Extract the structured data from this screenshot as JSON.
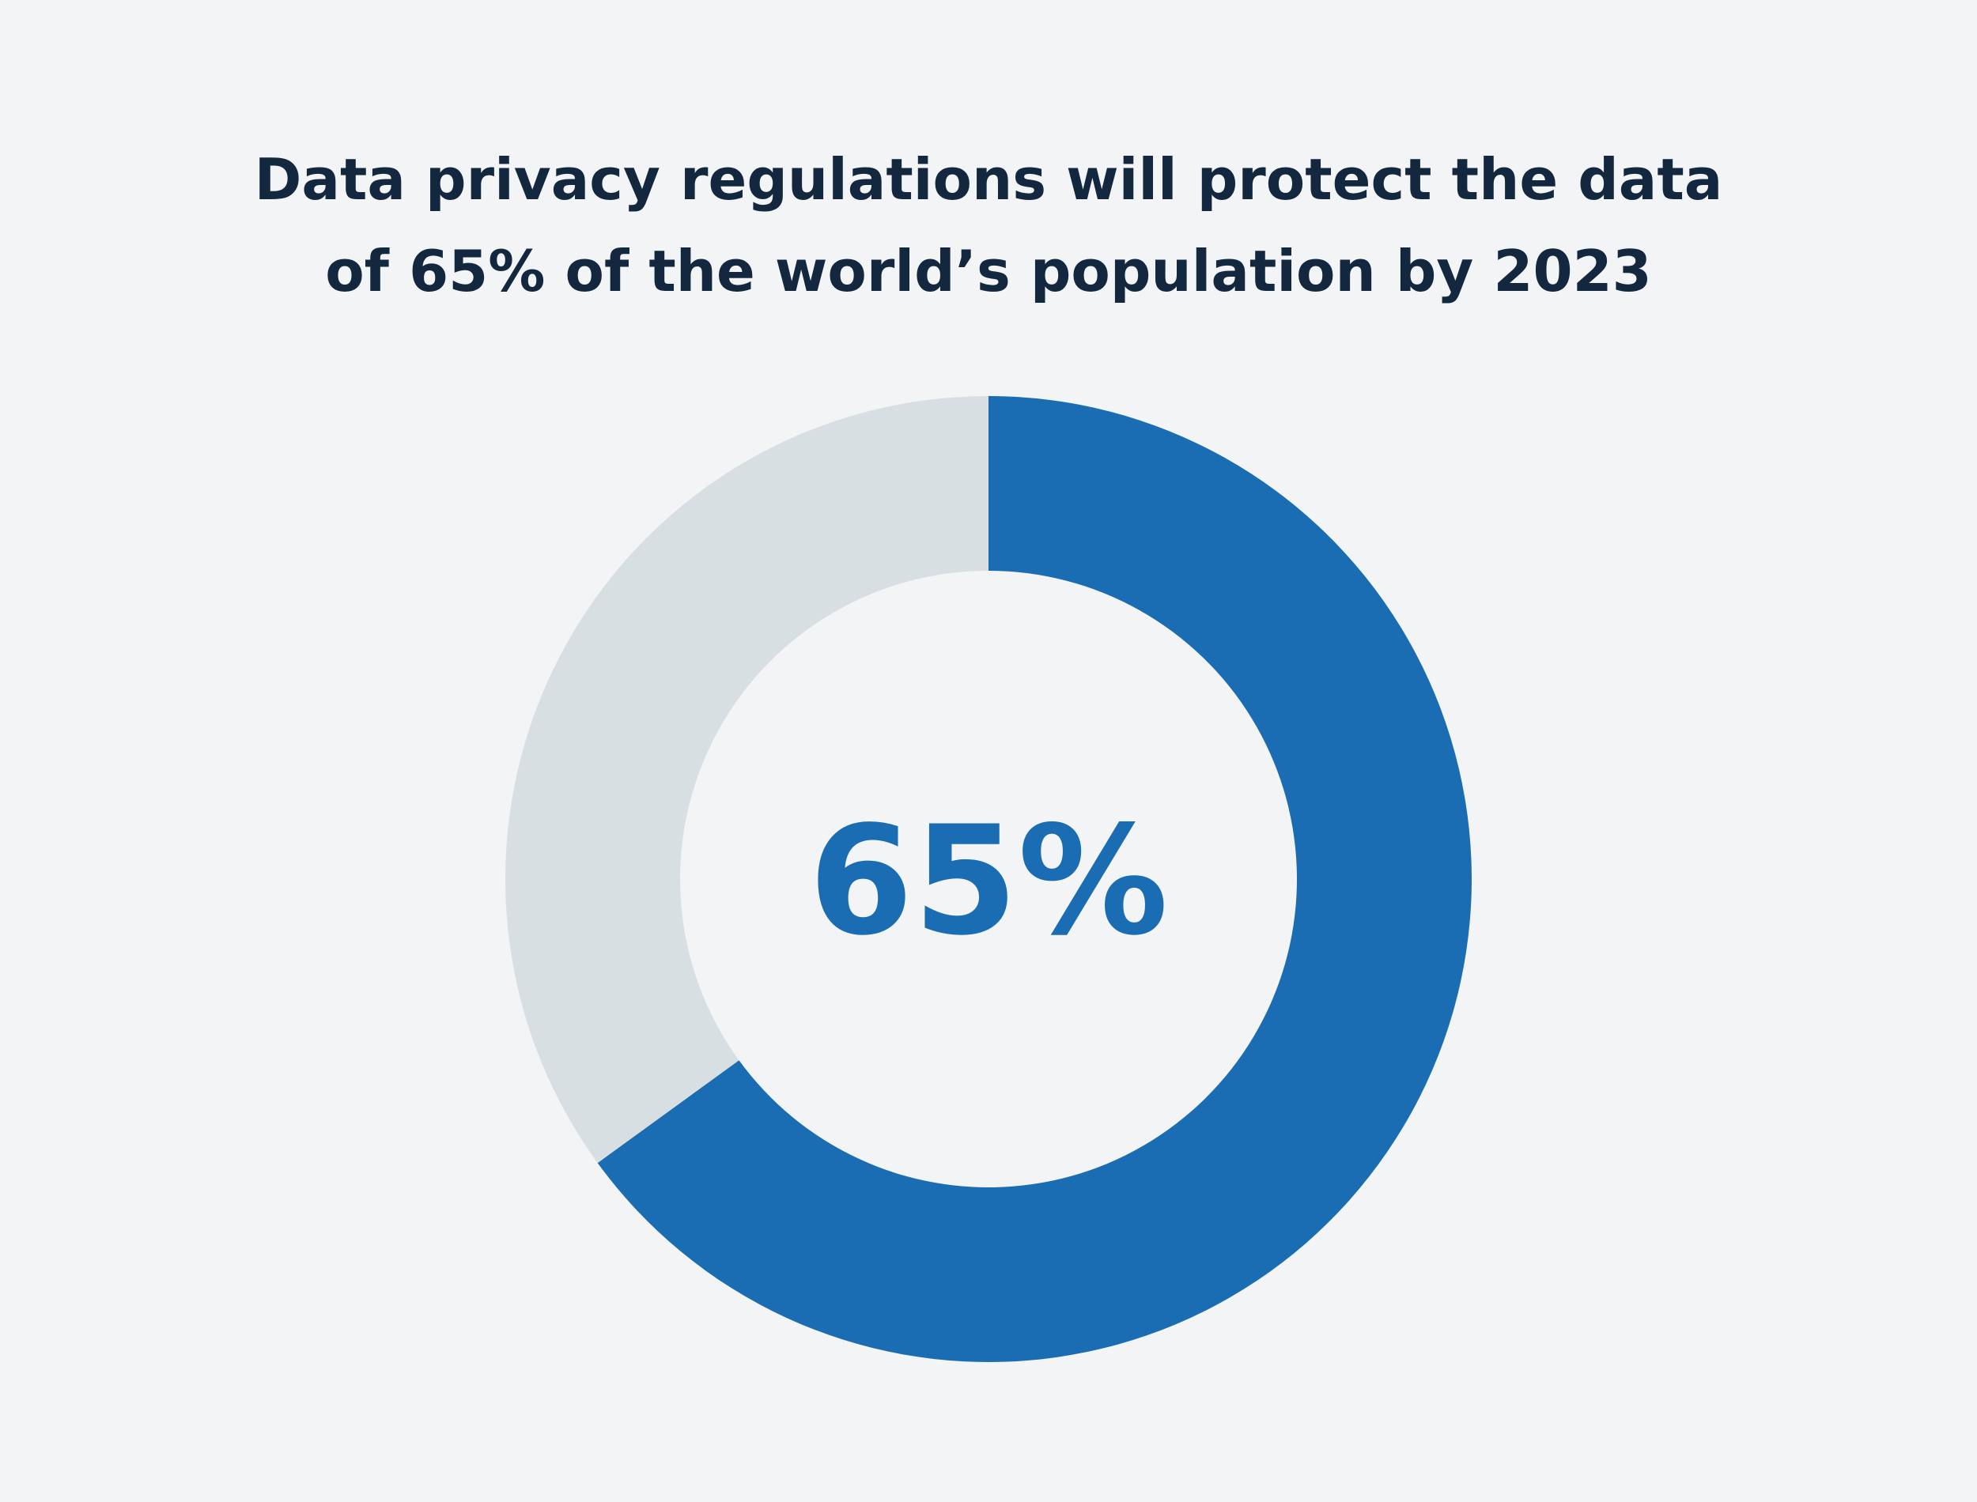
{
  "chart_data": {
    "type": "donut",
    "title": [
      "Data privacy regulations will protect the data",
      "of 65% of the world’s population by 2023"
    ],
    "values": [
      65,
      35
    ],
    "colors": [
      "#1b6db3",
      "#d8dfe3"
    ],
    "value_labels": [
      "65%",
      null
    ]
  }
}
